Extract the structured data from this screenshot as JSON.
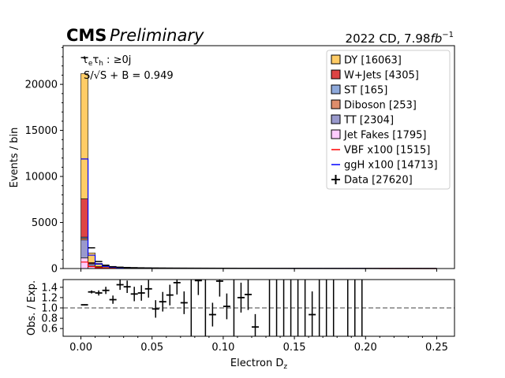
{
  "chart_data": [
    {
      "type": "bar",
      "stacked": true,
      "experiment": "CMS",
      "status": "Preliminary",
      "lumi_label": "2022 CD, 7.98",
      "lumi_unit": "fb",
      "lumi_exp": "−1",
      "channel_prefix": "τ",
      "channel_sub1": "e",
      "channel_mid": "τ",
      "channel_sub2": "h",
      "channel_suffix": " : ≥0j",
      "significance_label": "S/√S + B = 0.949",
      "ylabel": "Events / bin",
      "xlabel_main": "Electron D",
      "xlabel_sub": "z",
      "xlim": [
        -0.0125,
        0.2625
      ],
      "ylim": [
        0,
        24200
      ],
      "x_ticks": [
        "0.00",
        "0.05",
        "0.10",
        "0.15",
        "0.20",
        "0.25"
      ],
      "x_tick_values": [
        0,
        0.05,
        0.1,
        0.15,
        0.2,
        0.25
      ],
      "y_ticks": [
        "0",
        "5000",
        "10000",
        "15000",
        "20000"
      ],
      "y_tick_values": [
        0,
        5000,
        10000,
        15000,
        20000
      ],
      "bin_edges": [
        0.0,
        0.005,
        0.01,
        0.015,
        0.02,
        0.025,
        0.03,
        0.035,
        0.04,
        0.045,
        0.05,
        0.055,
        0.06,
        0.065,
        0.07,
        0.075,
        0.08,
        0.085,
        0.09,
        0.095,
        0.1,
        0.105,
        0.11,
        0.115,
        0.12,
        0.125,
        0.13,
        0.135,
        0.14,
        0.145,
        0.15,
        0.155,
        0.16,
        0.165,
        0.17,
        0.175,
        0.18,
        0.185,
        0.19,
        0.195,
        0.2,
        0.205,
        0.21,
        0.215,
        0.22,
        0.225,
        0.23,
        0.235,
        0.24,
        0.245,
        0.25
      ],
      "series": [
        {
          "name": "Jet Fakes [1795]",
          "color": "#ffccff",
          "values": [
            1150,
            330,
            120,
            55,
            30,
            22,
            16,
            12,
            10,
            8,
            7,
            6,
            5,
            5,
            4,
            4,
            3,
            3,
            3,
            3,
            2,
            2,
            2,
            2,
            2,
            1,
            1,
            1,
            1,
            1,
            1,
            1,
            1,
            1,
            1,
            1,
            1,
            0,
            0,
            0,
            0,
            0,
            0,
            0,
            0,
            0,
            0,
            0,
            0,
            0
          ]
        },
        {
          "name": "TT [2304]",
          "color": "#9999cc",
          "values": [
            1950,
            180,
            50,
            25,
            15,
            10,
            8,
            6,
            5,
            5,
            4,
            4,
            3,
            3,
            3,
            3,
            2,
            2,
            2,
            2,
            2,
            2,
            1,
            1,
            1,
            1,
            1,
            1,
            1,
            1,
            1,
            0,
            0,
            0,
            0,
            0,
            0,
            0,
            0,
            0,
            0,
            0,
            0,
            0,
            0,
            0,
            0,
            0,
            0,
            0
          ]
        },
        {
          "name": "Diboson [253]",
          "color": "#de8d6b",
          "values": [
            190,
            25,
            8,
            5,
            3,
            3,
            2,
            2,
            2,
            1,
            1,
            1,
            1,
            1,
            1,
            1,
            1,
            1,
            1,
            0,
            0,
            0,
            0,
            0,
            0,
            0,
            0,
            0,
            0,
            0,
            0,
            0,
            0,
            0,
            0,
            0,
            0,
            0,
            0,
            0,
            0,
            0,
            0,
            0,
            0,
            0,
            0,
            0,
            0,
            0
          ]
        },
        {
          "name": "ST [165]",
          "color": "#8ea9db",
          "values": [
            125,
            15,
            6,
            3,
            2,
            2,
            2,
            1,
            1,
            1,
            1,
            1,
            1,
            1,
            1,
            1,
            0,
            0,
            0,
            0,
            0,
            0,
            0,
            0,
            0,
            0,
            0,
            0,
            0,
            0,
            0,
            0,
            0,
            0,
            0,
            0,
            0,
            0,
            0,
            0,
            0,
            0,
            0,
            0,
            0,
            0,
            0,
            0,
            0,
            0
          ]
        },
        {
          "name": "W+Jets [4305]",
          "color": "#dd4444",
          "values": [
            4150,
            95,
            25,
            12,
            7,
            4,
            3,
            2,
            2,
            1,
            1,
            1,
            1,
            0,
            0,
            0,
            0,
            0,
            0,
            0,
            0,
            0,
            0,
            0,
            0,
            0,
            0,
            0,
            0,
            0,
            0,
            0,
            0,
            0,
            0,
            0,
            0,
            0,
            0,
            0,
            0,
            0,
            0,
            0,
            0,
            0,
            0,
            0,
            0,
            0
          ]
        },
        {
          "name": "DY [16063]",
          "color": "#ffcc66",
          "values": [
            13600,
            1050,
            350,
            170,
            105,
            70,
            52,
            42,
            34,
            30,
            26,
            23,
            21,
            19,
            18,
            17,
            16,
            15,
            14,
            13,
            12,
            12,
            11,
            10,
            10,
            9,
            9,
            8,
            8,
            8,
            7,
            7,
            7,
            6,
            6,
            6,
            6,
            5,
            5,
            5,
            5,
            5,
            4,
            4,
            4,
            4,
            4,
            4,
            3,
            3
          ]
        }
      ],
      "signals": [
        {
          "name": "VBF x100 [1515]",
          "color": "#ff0000",
          "values": [
            700,
            210,
            95,
            55,
            38,
            30,
            25,
            20,
            17,
            15,
            14,
            13,
            12,
            11,
            10,
            10,
            9,
            9,
            8,
            8,
            8,
            7,
            7,
            7,
            6,
            6,
            6,
            6,
            5,
            5,
            5,
            5,
            5,
            5,
            4,
            4,
            4,
            4,
            4,
            4,
            4,
            4,
            3,
            3,
            3,
            3,
            3,
            3,
            3,
            3
          ]
        },
        {
          "name": "ggH x100 [14713]",
          "color": "#0000ff",
          "values": [
            11900,
            1450,
            480,
            230,
            140,
            95,
            70,
            56,
            46,
            40,
            35,
            31,
            28,
            26,
            24,
            22,
            21,
            20,
            19,
            18,
            17,
            16,
            15,
            14,
            14,
            13,
            12,
            12,
            11,
            11,
            10,
            10,
            10,
            9,
            9,
            9,
            8,
            8,
            8,
            8,
            7,
            7,
            7,
            7,
            6,
            6,
            6,
            6,
            6,
            5
          ]
        }
      ],
      "data": {
        "name": "Data [27620]",
        "values": [
          22900,
          2250,
          760,
          360,
          200,
          145,
          110,
          90,
          72,
          62,
          55,
          50,
          45,
          41,
          38,
          35,
          33,
          31,
          29,
          27,
          25,
          24,
          22,
          21,
          20,
          19,
          18,
          17,
          16,
          15,
          15,
          14,
          13,
          13,
          12,
          12,
          11,
          11,
          10,
          10,
          10,
          9,
          9,
          9,
          8,
          8,
          8,
          8,
          7,
          7
        ]
      },
      "legend_position": "upper right"
    },
    {
      "type": "scatter",
      "ylabel": "Obs. / Exp.",
      "xlim": [
        -0.0125,
        0.2625
      ],
      "ylim": [
        0.45,
        1.55
      ],
      "y_ticks": [
        "0.6",
        "0.8",
        "1.0",
        "1.2",
        "1.4"
      ],
      "y_tick_values": [
        0.6,
        0.8,
        1.0,
        1.2,
        1.4
      ],
      "reference_line": 1.0,
      "points": [
        {
          "x": 0.0025,
          "y": 1.06,
          "err": 0.01
        },
        {
          "x": 0.0075,
          "y": 1.31,
          "err": 0.03
        },
        {
          "x": 0.0125,
          "y": 1.29,
          "err": 0.05
        },
        {
          "x": 0.0175,
          "y": 1.34,
          "err": 0.07
        },
        {
          "x": 0.0225,
          "y": 1.16,
          "err": 0.08
        },
        {
          "x": 0.0275,
          "y": 1.45,
          "err": 0.1
        },
        {
          "x": 0.0325,
          "y": 1.41,
          "err": 0.12
        },
        {
          "x": 0.0375,
          "y": 1.27,
          "err": 0.14
        },
        {
          "x": 0.0425,
          "y": 1.29,
          "err": 0.15
        },
        {
          "x": 0.0475,
          "y": 1.37,
          "err": 0.17
        },
        {
          "x": 0.0525,
          "y": 0.98,
          "err": 0.17
        },
        {
          "x": 0.0575,
          "y": 1.12,
          "err": 0.19
        },
        {
          "x": 0.0625,
          "y": 1.25,
          "err": 0.2
        },
        {
          "x": 0.0675,
          "y": 1.49,
          "err": 0.23
        },
        {
          "x": 0.0725,
          "y": 1.1,
          "err": 0.22
        },
        {
          "x": 0.0825,
          "y": 1.53,
          "err": 0.28
        },
        {
          "x": 0.0925,
          "y": 0.87,
          "err": 0.23
        },
        {
          "x": 0.0975,
          "y": 1.52,
          "err": 0.3
        },
        {
          "x": 0.1025,
          "y": 1.03,
          "err": 0.25
        },
        {
          "x": 0.1125,
          "y": 1.2,
          "err": 0.29
        },
        {
          "x": 0.1175,
          "y": 1.26,
          "err": 0.3
        },
        {
          "x": 0.1225,
          "y": 0.63,
          "err": 0.25
        },
        {
          "x": 0.1625,
          "y": 0.87,
          "err": 0.45
        }
      ],
      "full_bars": [
        0.0775,
        0.0875,
        0.1075,
        0.1325,
        0.1375,
        0.1425,
        0.1475,
        0.1525,
        0.1575,
        0.1675,
        0.1725,
        0.1775,
        0.1875,
        0.1925,
        0.1975
      ]
    }
  ]
}
